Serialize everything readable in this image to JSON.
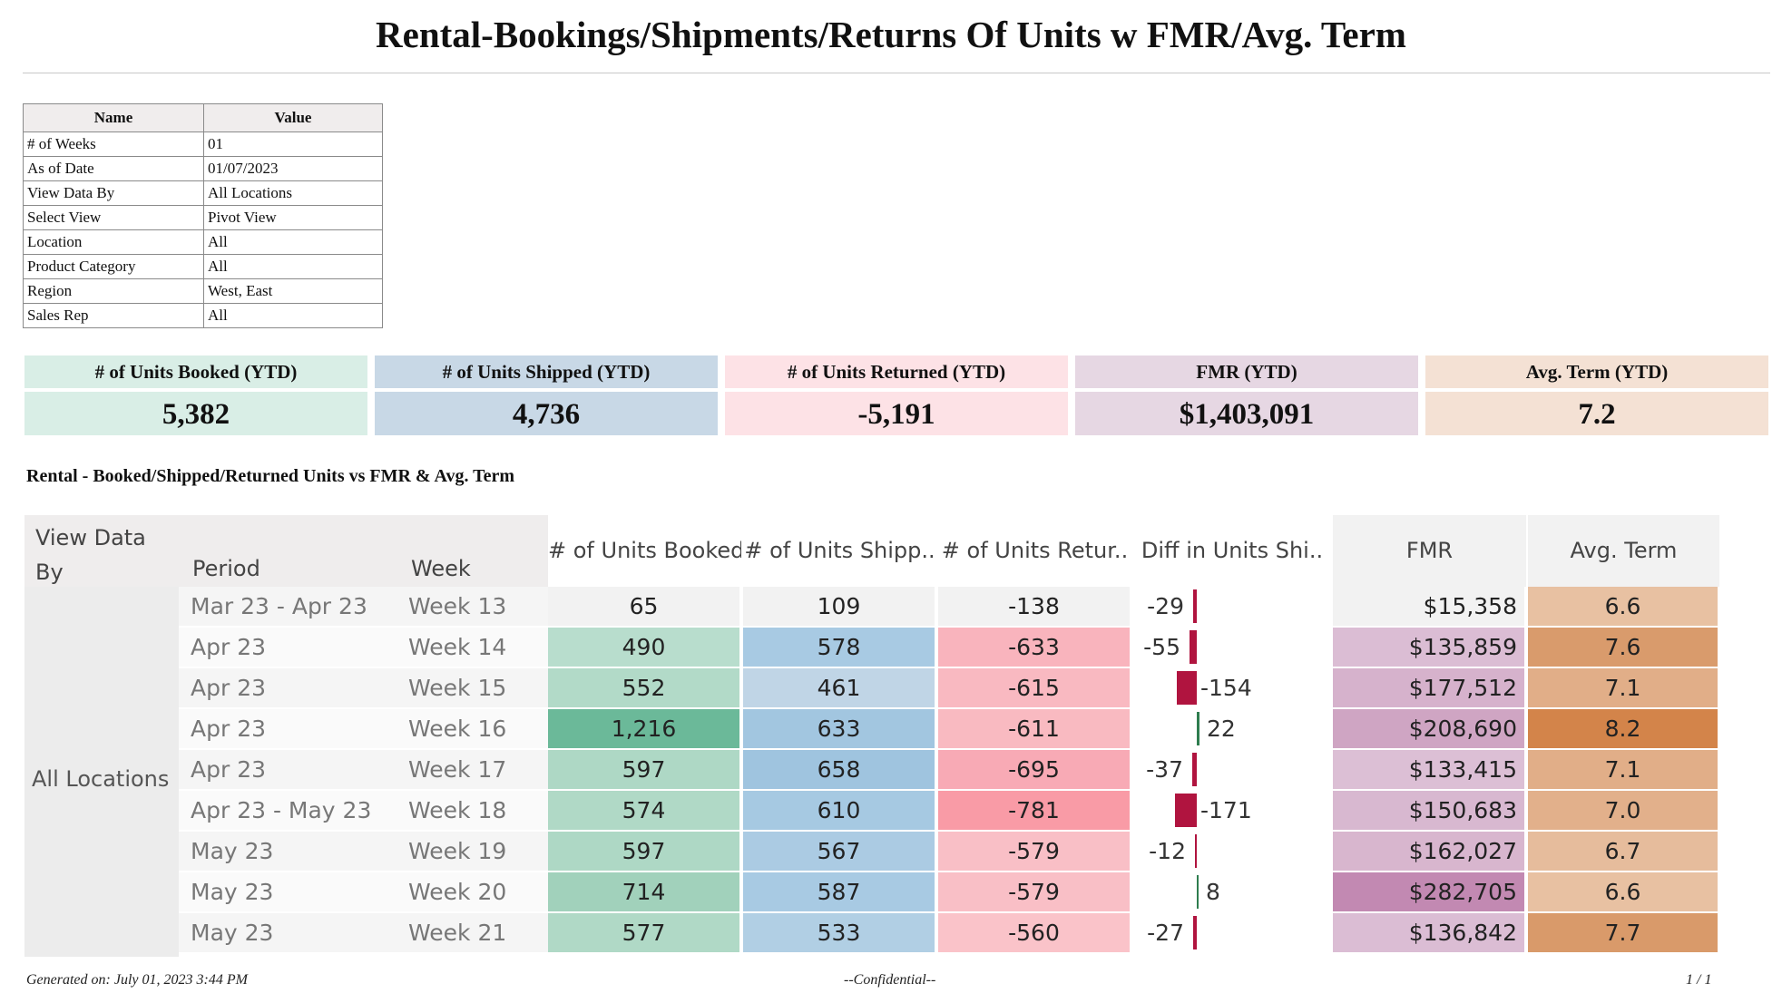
{
  "title": "Rental-Bookings/Shipments/Returns Of Units w FMR/Avg. Term",
  "params": {
    "header_name": "Name",
    "header_value": "Value",
    "rows": [
      {
        "name": "# of Weeks",
        "value": "01"
      },
      {
        "name": "As of Date",
        "value": "01/07/2023"
      },
      {
        "name": "View Data By",
        "value": "All Locations"
      },
      {
        "name": "Select View",
        "value": "Pivot View"
      },
      {
        "name": "Location",
        "value": "All"
      },
      {
        "name": "Product Category",
        "value": "All"
      },
      {
        "name": "Region",
        "value": "West, East"
      },
      {
        "name": "Sales Rep",
        "value": "All"
      }
    ]
  },
  "kpis": [
    {
      "label": "# of Units Booked (YTD)",
      "value": "5,382",
      "header_color": "#d9eee6",
      "value_color": "#d9eee6"
    },
    {
      "label": "# of Units Shipped (YTD)",
      "value": "4,736",
      "header_color": "#c8d8e6",
      "value_color": "#c8d8e6"
    },
    {
      "label": "# of Units Returned (YTD)",
      "value": "-5,191",
      "header_color": "#fde2e6",
      "value_color": "#fde2e6"
    },
    {
      "label": "FMR (YTD)",
      "value": "$1,403,091",
      "header_color": "#e6d7e3",
      "value_color": "#e6d7e3"
    },
    {
      "label": "Avg. Term (YTD)",
      "value": "7.2",
      "header_color": "#f4e1d4",
      "value_color": "#f4e1d4"
    }
  ],
  "subtitle": "Rental - Booked/Shipped/Returned Units vs FMR & Avg. Term",
  "table": {
    "header_view_data_by": "View Data By",
    "header_period": "Period",
    "header_week": "Week",
    "columns": [
      "# of Units Booked",
      "# of Units Shipp..",
      "# of Units Retur..",
      "Diff in Units Shi..",
      "FMR",
      "Avg. Term"
    ],
    "location": "All Locations",
    "rows": [
      {
        "period": "Mar 23 - Apr 23",
        "week": "Week 13",
        "booked": "65",
        "shipped": "109",
        "returned": "-138",
        "diff": "-29",
        "diff_value": -29,
        "fmr": "$15,358",
        "term": "6.6",
        "booked_color": "#f2f2f2",
        "shipped_color": "#f2f2f2",
        "returned_color": "#f2f2f2",
        "fmr_color": "#f2f2f2",
        "term_color": "#e8c1a2"
      },
      {
        "period": "Apr 23",
        "week": "Week 14",
        "booked": "490",
        "shipped": "578",
        "returned": "-633",
        "diff": "-55",
        "diff_value": -55,
        "fmr": "$135,859",
        "term": "7.6",
        "booked_color": "#b8ddcd",
        "shipped_color": "#a8cae3",
        "returned_color": "#f9b4bd",
        "fmr_color": "#dbbdd4",
        "term_color": "#d99b6c"
      },
      {
        "period": "Apr 23",
        "week": "Week 15",
        "booked": "552",
        "shipped": "461",
        "returned": "-615",
        "diff": "-154",
        "diff_value": -154,
        "fmr": "$177,512",
        "term": "7.1",
        "booked_color": "#b2dac8",
        "shipped_color": "#c0d5e6",
        "returned_color": "#f9b9c1",
        "fmr_color": "#d6b2cc",
        "term_color": "#e1ae88"
      },
      {
        "period": "Apr 23",
        "week": "Week 16",
        "booked": "1,216",
        "shipped": "633",
        "returned": "-611",
        "diff": "22",
        "diff_value": 22,
        "fmr": "$208,690",
        "term": "8.2",
        "booked_color": "#6bb999",
        "shipped_color": "#a2c6e0",
        "returned_color": "#f9bac1",
        "fmr_color": "#cfa5c3",
        "term_color": "#d3844a"
      },
      {
        "period": "Apr 23",
        "week": "Week 17",
        "booked": "597",
        "shipped": "658",
        "returned": "-695",
        "diff": "-37",
        "diff_value": -37,
        "fmr": "$133,415",
        "term": "7.1",
        "booked_color": "#aed8c5",
        "shipped_color": "#9fc4df",
        "returned_color": "#f8aab5",
        "fmr_color": "#dcbfd5",
        "term_color": "#e1ae88"
      },
      {
        "period": "Apr 23 - May 23",
        "week": "Week 18",
        "booked": "574",
        "shipped": "610",
        "returned": "-781",
        "diff": "-171",
        "diff_value": -171,
        "fmr": "$150,683",
        "term": "7.0",
        "booked_color": "#b0d9c6",
        "shipped_color": "#a6c9e2",
        "returned_color": "#f99ba6",
        "fmr_color": "#d8b8d0",
        "term_color": "#e2b08b"
      },
      {
        "period": "May 23",
        "week": "Week 19",
        "booked": "597",
        "shipped": "567",
        "returned": "-579",
        "diff": "-12",
        "diff_value": -12,
        "fmr": "$162,027",
        "term": "6.7",
        "booked_color": "#aed8c5",
        "shipped_color": "#abcbe3",
        "returned_color": "#f9bfc6",
        "fmr_color": "#d8b6ce",
        "term_color": "#e6bc9c"
      },
      {
        "period": "May 23",
        "week": "Week 20",
        "booked": "714",
        "shipped": "587",
        "returned": "-579",
        "diff": "8",
        "diff_value": 8,
        "fmr": "$282,705",
        "term": "6.6",
        "booked_color": "#a1d1bb",
        "shipped_color": "#a8cae3",
        "returned_color": "#f9bfc6",
        "fmr_color": "#c289b2",
        "term_color": "#e8c1a2"
      },
      {
        "period": "May 23",
        "week": "Week 21",
        "booked": "577",
        "shipped": "533",
        "returned": "-560",
        "diff": "-27",
        "diff_value": -27,
        "fmr": "$136,842",
        "term": "7.7",
        "booked_color": "#b0d9c6",
        "shipped_color": "#b1cfe4",
        "returned_color": "#fac3c9",
        "fmr_color": "#dbbdd4",
        "term_color": "#d99a6a"
      }
    ]
  },
  "diff_colors": {
    "negative": "#b0143f",
    "positive": "#2e7d4f"
  },
  "footer": {
    "generated": "Generated on: July 01, 2023 3:44 PM",
    "confidential": "--Confidential--",
    "page": "1 / 1"
  }
}
